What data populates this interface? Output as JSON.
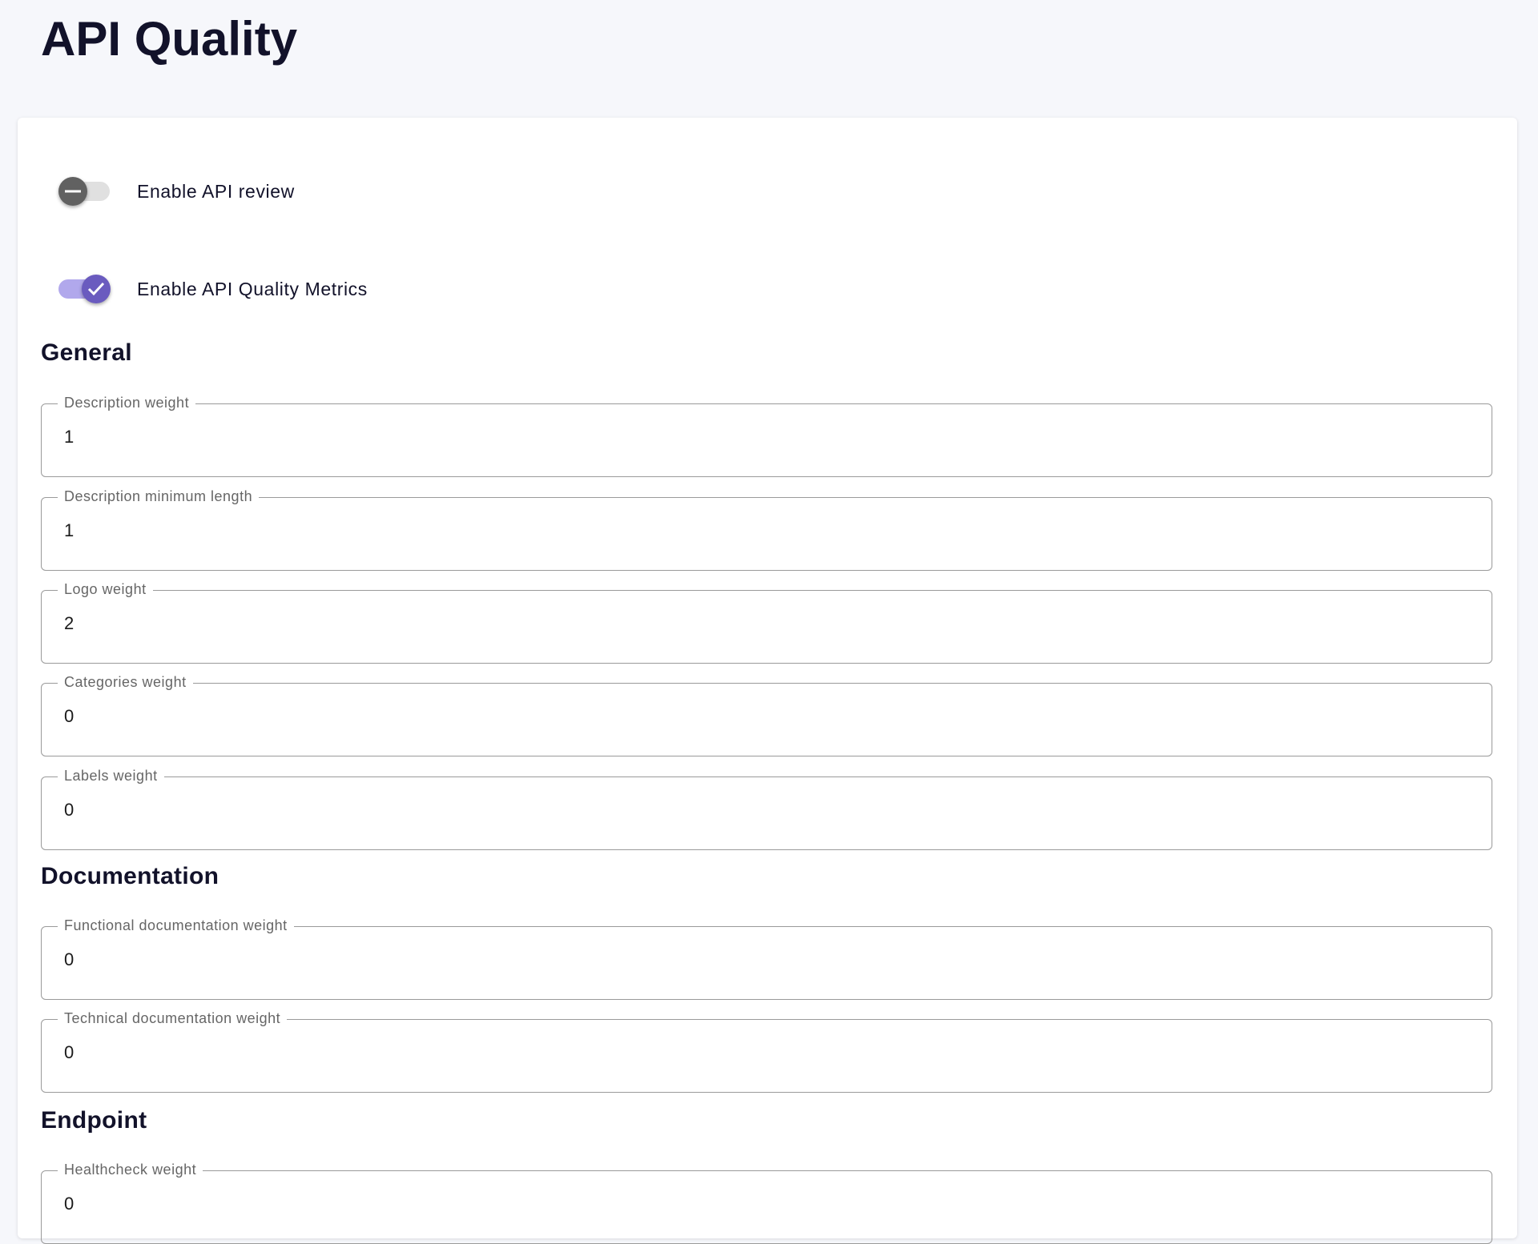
{
  "page": {
    "title": "API Quality"
  },
  "toggles": [
    {
      "label": "Enable API review",
      "checked": false
    },
    {
      "label": "Enable API Quality Metrics",
      "checked": true
    }
  ],
  "colors": {
    "accent": "#6a5bbf",
    "accent_track": "#b1a8ec",
    "off_thumb": "#616161",
    "off_track": "#e0e0e0"
  },
  "sections": {
    "general": {
      "heading": "General",
      "fields": [
        {
          "label": "Description weight",
          "value": "1"
        },
        {
          "label": "Description minimum length",
          "value": "1"
        },
        {
          "label": "Logo weight",
          "value": "2"
        },
        {
          "label": "Categories weight",
          "value": "0"
        },
        {
          "label": "Labels weight",
          "value": "0"
        }
      ]
    },
    "documentation": {
      "heading": "Documentation",
      "fields": [
        {
          "label": "Functional documentation weight",
          "value": "0"
        },
        {
          "label": "Technical documentation weight",
          "value": "0"
        }
      ]
    },
    "endpoint": {
      "heading": "Endpoint",
      "fields": [
        {
          "label": "Healthcheck weight",
          "value": "0"
        }
      ]
    }
  }
}
